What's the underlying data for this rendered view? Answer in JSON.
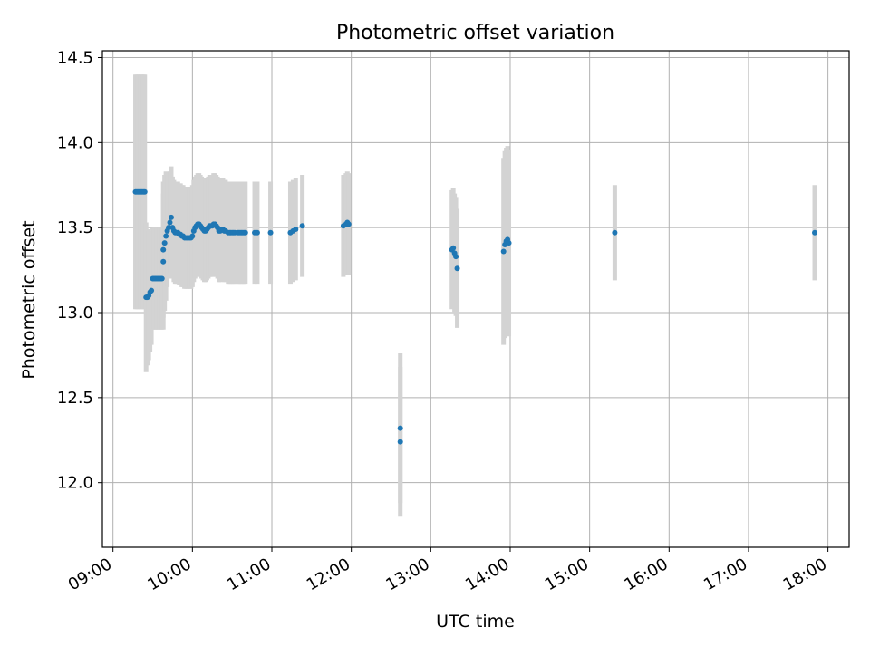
{
  "chart_data": {
    "type": "scatter",
    "title": "Photometric offset variation",
    "xlabel": "UTC time",
    "ylabel": "Photometric offset",
    "x_axis": "time",
    "xlim": [
      "08:52",
      "18:16"
    ],
    "ylim": [
      11.62,
      14.54
    ],
    "x_ticks": [
      "09:00",
      "10:00",
      "11:00",
      "12:00",
      "13:00",
      "14:00",
      "15:00",
      "16:00",
      "17:00",
      "18:00"
    ],
    "y_ticks": [
      "12.0",
      "12.5",
      "13.0",
      "13.5",
      "14.0",
      "14.5"
    ],
    "grid": true,
    "legend": "none",
    "colors": {
      "points": "#1f77b4",
      "error_bars": "#d3d3d3",
      "grid": "#b0b0b0"
    },
    "series": [
      {
        "points": [
          [
            "09:17",
            13.71,
            0.69
          ],
          [
            "09:18",
            13.71,
            0.69
          ],
          [
            "09:19",
            13.71,
            0.69
          ],
          [
            "09:20",
            13.71,
            0.69
          ],
          [
            "09:21",
            13.71,
            0.69
          ],
          [
            "09:22",
            13.71,
            0.69
          ],
          [
            "09:23",
            13.71,
            0.69
          ],
          [
            "09:24",
            13.71,
            0.69
          ],
          [
            "09:25",
            13.09,
            0.44
          ],
          [
            "09:26",
            13.09,
            0.4
          ],
          [
            "09:27",
            13.1,
            0.38
          ],
          [
            "09:28",
            13.12,
            0.35
          ],
          [
            "09:29",
            13.13,
            0.32
          ],
          [
            "09:30",
            13.2,
            0.3
          ],
          [
            "09:31",
            13.2,
            0.3
          ],
          [
            "09:32",
            13.2,
            0.3
          ],
          [
            "09:33",
            13.2,
            0.3
          ],
          [
            "09:34",
            13.2,
            0.3
          ],
          [
            "09:35",
            13.2,
            0.3
          ],
          [
            "09:36",
            13.2,
            0.3
          ],
          [
            "09:37",
            13.2,
            0.3
          ],
          [
            "09:38",
            13.3,
            0.4
          ],
          [
            "09:38",
            13.37,
            0.4
          ],
          [
            "09:39",
            13.41,
            0.4
          ],
          [
            "09:40",
            13.45,
            0.38
          ],
          [
            "09:41",
            13.48,
            0.33
          ],
          [
            "09:42",
            13.5,
            0.3
          ],
          [
            "09:43",
            13.53,
            0.3
          ],
          [
            "09:44",
            13.56,
            0.3
          ],
          [
            "09:45",
            13.5,
            0.3
          ],
          [
            "09:46",
            13.48,
            0.3
          ],
          [
            "09:47",
            13.47,
            0.3
          ],
          [
            "09:48",
            13.47,
            0.3
          ],
          [
            "09:49",
            13.47,
            0.3
          ],
          [
            "09:50",
            13.46,
            0.3
          ],
          [
            "09:51",
            13.46,
            0.3
          ],
          [
            "09:52",
            13.45,
            0.3
          ],
          [
            "09:53",
            13.45,
            0.3
          ],
          [
            "09:54",
            13.44,
            0.3
          ],
          [
            "09:55",
            13.44,
            0.3
          ],
          [
            "09:56",
            13.44,
            0.3
          ],
          [
            "09:57",
            13.44,
            0.3
          ],
          [
            "09:58",
            13.44,
            0.3
          ],
          [
            "09:59",
            13.44,
            0.3
          ],
          [
            "10:00",
            13.45,
            0.3
          ],
          [
            "10:01",
            13.48,
            0.3
          ],
          [
            "10:02",
            13.5,
            0.3
          ],
          [
            "10:03",
            13.51,
            0.3
          ],
          [
            "10:04",
            13.52,
            0.3
          ],
          [
            "10:05",
            13.52,
            0.3
          ],
          [
            "10:06",
            13.51,
            0.3
          ],
          [
            "10:07",
            13.5,
            0.3
          ],
          [
            "10:08",
            13.49,
            0.3
          ],
          [
            "10:09",
            13.48,
            0.3
          ],
          [
            "10:10",
            13.48,
            0.3
          ],
          [
            "10:11",
            13.49,
            0.3
          ],
          [
            "10:12",
            13.5,
            0.3
          ],
          [
            "10:13",
            13.51,
            0.3
          ],
          [
            "10:14",
            13.51,
            0.3
          ],
          [
            "10:15",
            13.51,
            0.3
          ],
          [
            "10:16",
            13.52,
            0.3
          ],
          [
            "10:17",
            13.52,
            0.3
          ],
          [
            "10:18",
            13.51,
            0.3
          ],
          [
            "10:19",
            13.5,
            0.3
          ],
          [
            "10:20",
            13.48,
            0.3
          ],
          [
            "10:21",
            13.48,
            0.3
          ],
          [
            "10:22",
            13.49,
            0.3
          ],
          [
            "10:23",
            13.49,
            0.3
          ],
          [
            "10:24",
            13.48,
            0.3
          ],
          [
            "10:25",
            13.48,
            0.3
          ],
          [
            "10:27",
            13.47,
            0.3
          ],
          [
            "10:28",
            13.47,
            0.3
          ],
          [
            "10:29",
            13.47,
            0.3
          ],
          [
            "10:30",
            13.47,
            0.3
          ],
          [
            "10:31",
            13.47,
            0.3
          ],
          [
            "10:32",
            13.47,
            0.3
          ],
          [
            "10:34",
            13.47,
            0.3
          ],
          [
            "10:35",
            13.47,
            0.3
          ],
          [
            "10:36",
            13.47,
            0.3
          ],
          [
            "10:37",
            13.47,
            0.3
          ],
          [
            "10:38",
            13.47,
            0.3
          ],
          [
            "10:39",
            13.47,
            0.3
          ],
          [
            "10:40",
            13.47,
            0.3
          ],
          [
            "10:47",
            13.47,
            0.3
          ],
          [
            "10:49",
            13.47,
            0.3
          ],
          [
            "10:59",
            13.47,
            0.3
          ],
          [
            "11:14",
            13.47,
            0.3
          ],
          [
            "11:16",
            13.48,
            0.3
          ],
          [
            "11:18",
            13.49,
            0.3
          ],
          [
            "11:23",
            13.51,
            0.3
          ],
          [
            "11:54",
            13.51,
            0.3
          ],
          [
            "11:56",
            13.52,
            0.3
          ],
          [
            "11:57",
            13.53,
            0.3
          ],
          [
            "11:58",
            13.52,
            0.3
          ],
          [
            "12:37",
            12.32,
            0.44
          ],
          [
            "12:37",
            12.24,
            0.44
          ],
          [
            "13:16",
            13.37,
            0.35
          ],
          [
            "13:17",
            13.38,
            0.35
          ],
          [
            "13:18",
            13.35,
            0.35
          ],
          [
            "13:19",
            13.33,
            0.35
          ],
          [
            "13:20",
            13.26,
            0.35
          ],
          [
            "13:55",
            13.36,
            0.55
          ],
          [
            "13:56",
            13.4,
            0.55
          ],
          [
            "13:57",
            13.42,
            0.55
          ],
          [
            "13:58",
            13.43,
            0.55
          ],
          [
            "13:59",
            13.41,
            0.55
          ],
          [
            "15:19",
            13.47,
            0.28
          ],
          [
            "17:50",
            13.47,
            0.28
          ]
        ]
      }
    ]
  }
}
